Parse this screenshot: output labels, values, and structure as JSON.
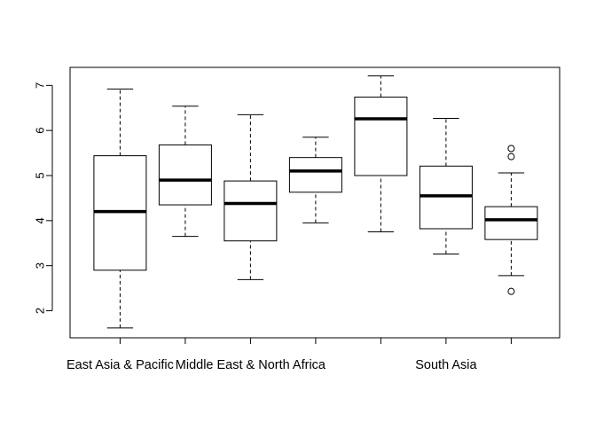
{
  "chart_data": {
    "type": "boxplot",
    "title": "",
    "xlabel": "",
    "ylabel": "",
    "ylim": [
      1.4,
      7.4
    ],
    "y_ticks": [
      2,
      3,
      4,
      5,
      6,
      7
    ],
    "y_tick_labels": [
      "2",
      "3",
      "4",
      "5",
      "6",
      "7"
    ],
    "grid": false,
    "legend": "none",
    "categories": [
      "East Asia & Pacific",
      "",
      "Middle East & North Africa",
      "",
      "",
      "South Asia",
      ""
    ],
    "boxes": [
      {
        "whisker_low": 1.62,
        "q1": 2.9,
        "median": 4.2,
        "q3": 5.44,
        "whisker_high": 6.92,
        "outliers": []
      },
      {
        "whisker_low": 3.65,
        "q1": 4.35,
        "median": 4.9,
        "q3": 5.68,
        "whisker_high": 6.54,
        "outliers": []
      },
      {
        "whisker_low": 2.69,
        "q1": 3.55,
        "median": 4.38,
        "q3": 4.88,
        "whisker_high": 6.35,
        "outliers": []
      },
      {
        "whisker_low": 3.95,
        "q1": 4.63,
        "median": 5.1,
        "q3": 5.4,
        "whisker_high": 5.85,
        "outliers": []
      },
      {
        "whisker_low": 3.75,
        "q1": 5.0,
        "median": 6.26,
        "q3": 6.74,
        "whisker_high": 7.21,
        "outliers": []
      },
      {
        "whisker_low": 3.26,
        "q1": 3.82,
        "median": 4.55,
        "q3": 5.21,
        "whisker_high": 6.27,
        "outliers": []
      },
      {
        "whisker_low": 2.78,
        "q1": 3.58,
        "median": 4.02,
        "q3": 4.31,
        "whisker_high": 5.06,
        "outliers": [
          5.6,
          5.42,
          2.43
        ]
      }
    ]
  }
}
